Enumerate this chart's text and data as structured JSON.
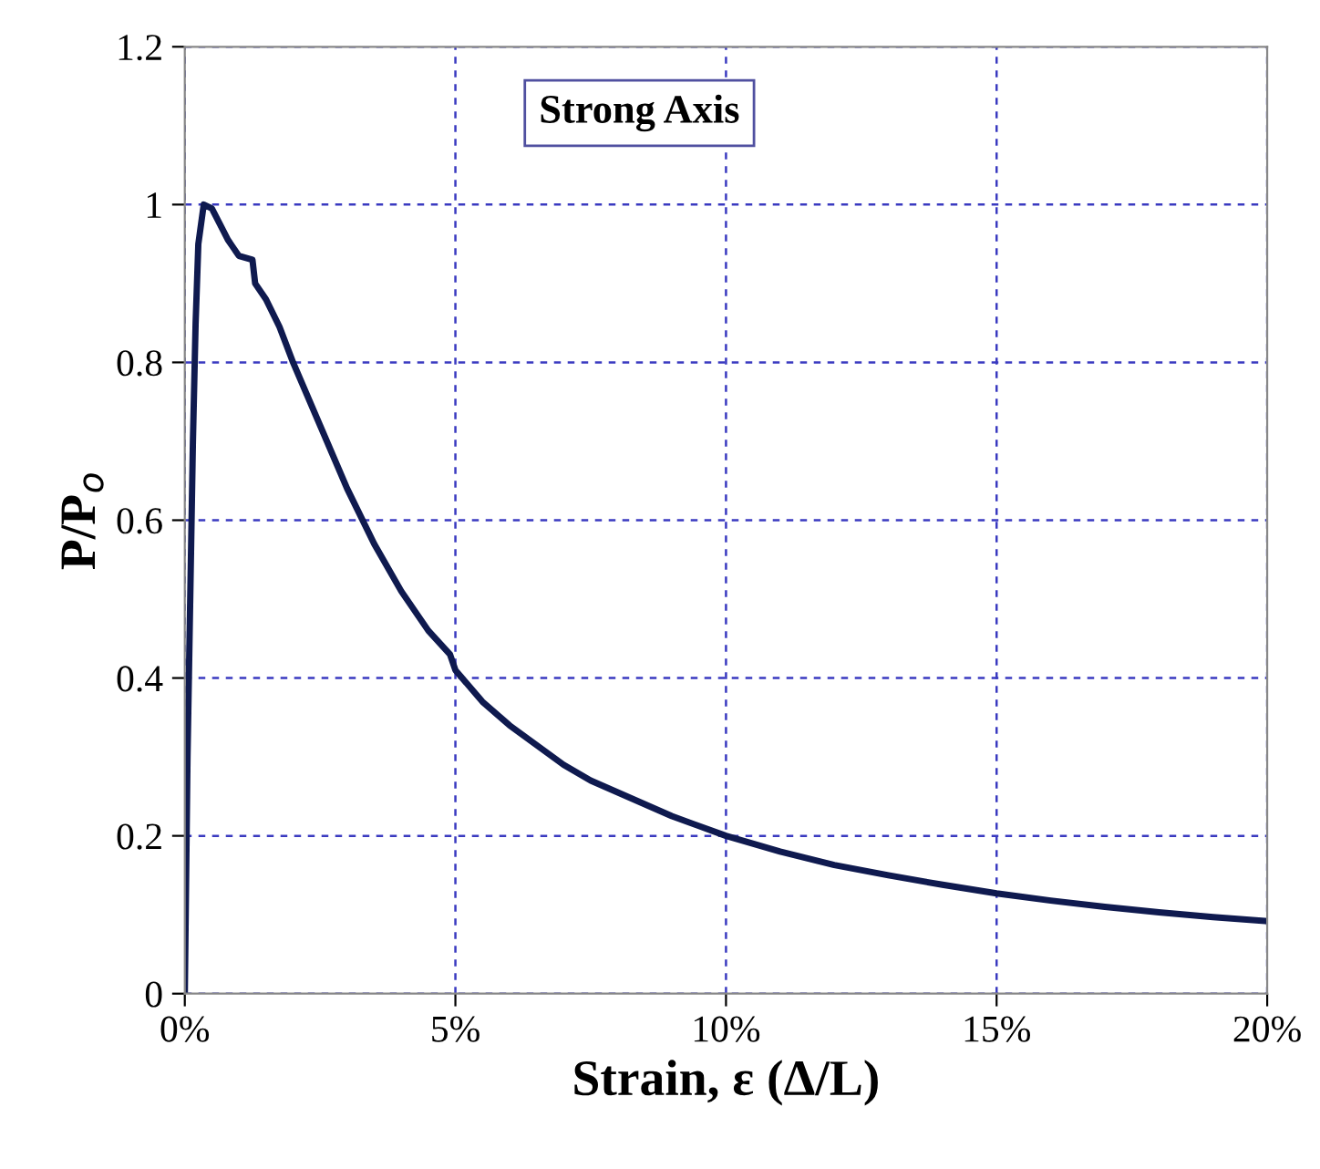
{
  "chart_data": {
    "type": "line",
    "xlabel": "Strain, ε (Δ/L)",
    "ylabel": "P/P$_{o}$",
    "annotations": [
      "Strong Axis"
    ],
    "x": [
      0,
      0.05,
      0.15,
      0.2,
      0.25,
      0.35,
      0.5,
      0.8,
      1.0,
      1.25,
      1.3,
      1.5,
      1.75,
      2.0,
      2.5,
      3.0,
      3.5,
      4.0,
      4.5,
      4.9,
      5.0,
      5.5,
      6,
      7,
      7.5,
      8,
      9,
      10,
      11,
      12,
      13,
      14,
      15,
      16,
      17,
      18,
      19,
      20
    ],
    "series": [
      {
        "color": "#0f1a4f",
        "values": [
          0,
          0.3,
          0.7,
          0.85,
          0.95,
          1.0,
          0.995,
          0.955,
          0.935,
          0.93,
          0.9,
          0.88,
          0.845,
          0.8,
          0.72,
          0.64,
          0.57,
          0.51,
          0.46,
          0.43,
          0.41,
          0.37,
          0.34,
          0.29,
          0.27,
          0.255,
          0.225,
          0.2,
          0.18,
          0.163,
          0.15,
          0.138,
          0.127,
          0.118,
          0.11,
          0.103,
          0.097,
          0.092
        ]
      }
    ],
    "xlim": [
      0,
      20
    ],
    "ylim": [
      0,
      1.2
    ],
    "xticks": [
      {
        "value": 0,
        "label": "0%"
      },
      {
        "value": 5,
        "label": "5%"
      },
      {
        "value": 10,
        "label": "10%"
      },
      {
        "value": 15,
        "label": "15%"
      },
      {
        "value": 20,
        "label": "20%"
      }
    ],
    "yticks": [
      0,
      0.2,
      0.4,
      0.6,
      0.8,
      1,
      1.2
    ],
    "grid": true,
    "legend": false,
    "marker": "none",
    "line_style": "solid"
  }
}
